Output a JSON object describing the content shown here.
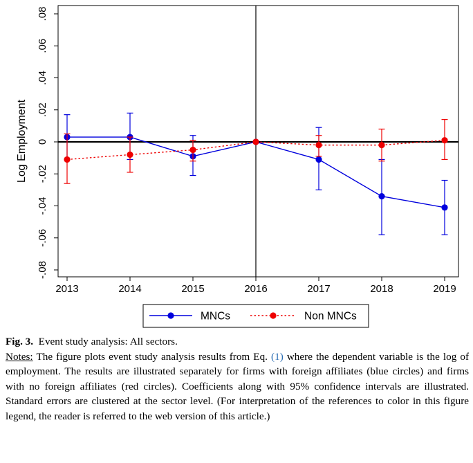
{
  "chart_data": {
    "type": "line",
    "title": "",
    "xlabel": "",
    "ylabel": "Log Employment",
    "x": [
      2013,
      2014,
      2015,
      2016,
      2017,
      2018,
      2019
    ],
    "xticks": [
      "2013",
      "2014",
      "2015",
      "2016",
      "2017",
      "2018",
      "2019"
    ],
    "xlim": [
      2013,
      2019
    ],
    "ylim": [
      -0.08,
      0.08
    ],
    "yticks": [
      -0.08,
      -0.06,
      -0.04,
      -0.02,
      0,
      0.02,
      0.04,
      0.06,
      0.08
    ],
    "ytick_labels": [
      "-.08",
      "-.06",
      "-.04",
      "-.02",
      "0",
      ".02",
      ".04",
      ".06",
      ".08"
    ],
    "reference_lines": {
      "horizontal_y": 0,
      "vertical_x": 2016
    },
    "grid": false,
    "legend_position": "bottom",
    "series": [
      {
        "name": "MNCs",
        "color": "#0000dd",
        "line_style": "solid",
        "marker": "circle",
        "values": [
          0.003,
          0.003,
          -0.009,
          0,
          -0.011,
          -0.034,
          -0.041
        ],
        "ci_low": [
          -0.011,
          -0.011,
          -0.021,
          0,
          -0.03,
          -0.058,
          -0.058
        ],
        "ci_high": [
          0.017,
          0.018,
          0.004,
          0,
          0.009,
          -0.011,
          -0.024
        ]
      },
      {
        "name": "Non MNCs",
        "color": "#ee0000",
        "line_style": "dotted",
        "marker": "circle",
        "values": [
          -0.011,
          -0.008,
          -0.005,
          0,
          -0.002,
          -0.002,
          0.001
        ],
        "ci_low": [
          -0.026,
          -0.019,
          -0.012,
          0,
          -0.009,
          -0.012,
          -0.011
        ],
        "ci_high": [
          0.005,
          0.003,
          0.001,
          0,
          0.004,
          0.008,
          0.014
        ]
      }
    ]
  },
  "caption": {
    "fig_label": "Fig. 3.",
    "fig_title": "Event study analysis: All sectors.",
    "notes_label": "Notes:",
    "notes_part1": "The figure plots event study analysis results from Eq.",
    "notes_ref": "(1)",
    "notes_part2": "where the dependent variable is the log of employment. The results are illustrated separately for firms with foreign affiliates (blue circles) and firms with no foreign affiliates (red circles). Coefficients along with 95% confidence intervals are illustrated. Standard errors are clustered at the sector level. (For interpretation of the references to color in this figure legend, the reader is referred to the web version of this article.)"
  }
}
